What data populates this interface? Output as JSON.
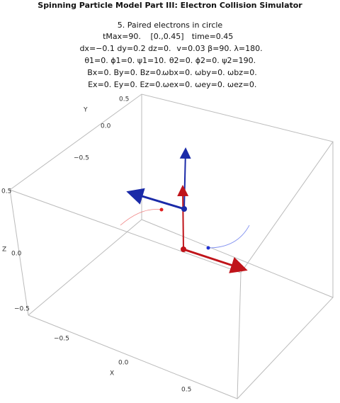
{
  "header": {
    "title": "Spinning Particle Model Part III: Electron Collision Simulator",
    "lines": [
      [
        "5. Paired electrons in circle"
      ],
      [
        "tMax=90.",
        "[0.,0.45]",
        "time=0.45"
      ],
      [
        "dx=−0.1 dy=0.2 dz=0.",
        "v=0.03 β=90. λ=180."
      ],
      [
        "θ1=0. ϕ1=0. ψ1=10.",
        "θ2=0. ϕ2=0. ψ2=190."
      ],
      [
        "Bx=0. By=0. Bz=0.",
        "ωbx=0. ωby=0. ωbz=0."
      ],
      [
        "Ex=0. Ey=0. Ez=0.",
        "ωex=0. ωey=0. ωez=0."
      ]
    ]
  },
  "plot": {
    "x_axis": {
      "label": "X",
      "ticks": [
        "−0.5",
        "0.0",
        "0.5"
      ]
    },
    "y_axis": {
      "label": "Y",
      "ticks": [
        "0.5",
        "0.0",
        "−0.5"
      ]
    },
    "z_axis": {
      "label": "Z",
      "ticks": [
        "0.5",
        "0.0",
        "−0.5"
      ]
    }
  }
}
